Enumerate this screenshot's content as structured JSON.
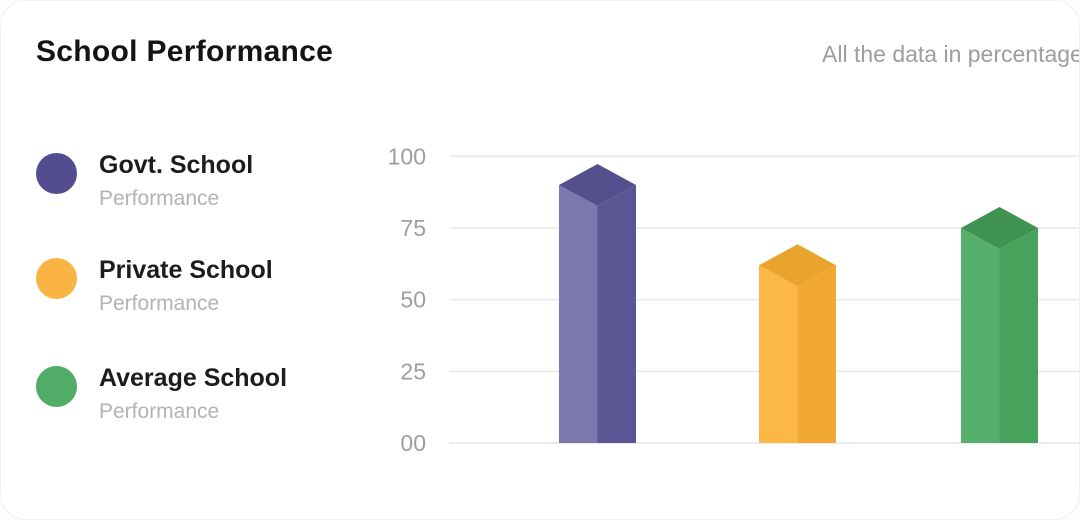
{
  "card": {
    "title": "School Performance",
    "subtitle": "All the data in percentage"
  },
  "legend": [
    {
      "label": "Govt. School",
      "sublabel": "Performance",
      "color": "#534D90"
    },
    {
      "label": "Private School",
      "sublabel": "Performance",
      "color": "#F9B443"
    },
    {
      "label": "Average School",
      "sublabel": "Performance",
      "color": "#51AC68"
    }
  ],
  "chart_data": {
    "type": "bar",
    "style": "3d-column",
    "title": "School Performance",
    "subtitle": "All the data in percentage",
    "categories": [
      "Govt. School Performance",
      "Private School Performance",
      "Average School Performance"
    ],
    "values": [
      90,
      62,
      75
    ],
    "unit": "percent",
    "ylim": [
      0,
      100
    ],
    "yticks": [
      0,
      25,
      50,
      75,
      100
    ],
    "ytick_labels": [
      "00",
      "25",
      "50",
      "75",
      "100"
    ],
    "grid": true,
    "legend_position": "left",
    "bar_colors": [
      {
        "left": "#7D77B0",
        "right": "#5C5594",
        "top": "#554F8E"
      },
      {
        "left": "#FBB845",
        "right": "#F0A832",
        "top": "#E9A42D"
      },
      {
        "left": "#56B06B",
        "right": "#47A35C",
        "top": "#3F9251"
      }
    ],
    "colors": {
      "gridline": "#ececec",
      "tick_label": "#9e9e9e"
    }
  }
}
